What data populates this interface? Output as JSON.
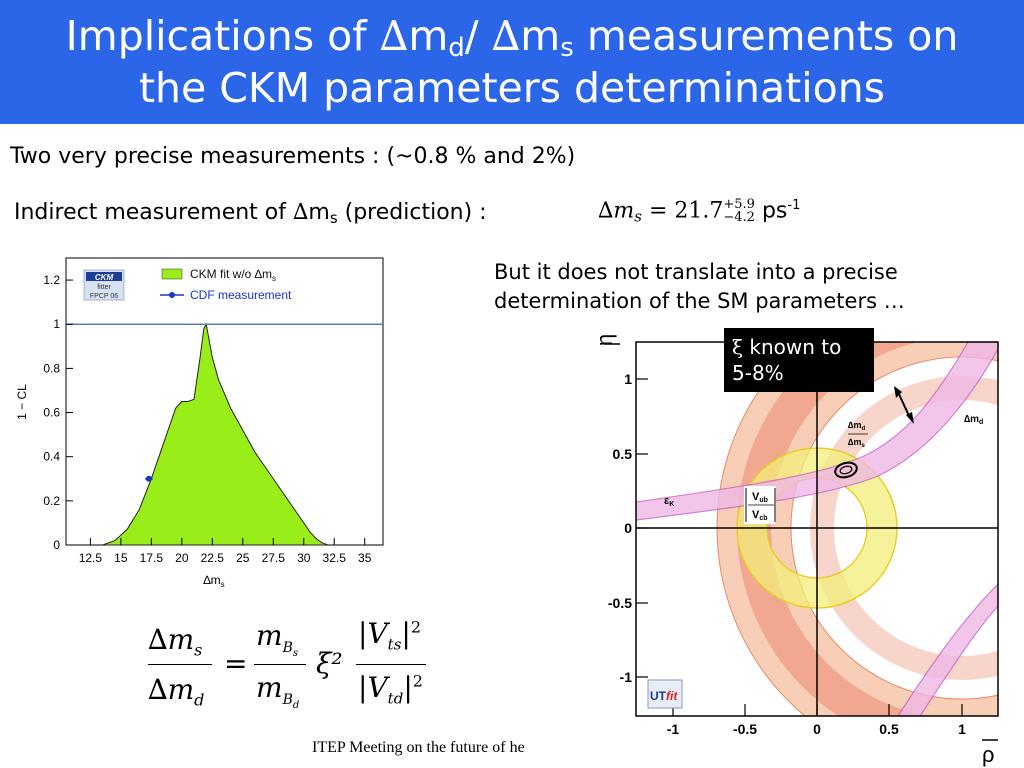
{
  "slide": {
    "title_line1_a": "Implications of ",
    "delta": "∆",
    "m": "m",
    "sub_d": "d",
    "slash": "/ ",
    "sub_s": "s",
    "title_line1_b": " measurements on",
    "title_line2": "the CKM parameters determinations",
    "line_precise": "Two very precise measurements : (~0.8 % and 2%)",
    "indirect_a": "Indirect measurement of ",
    "indirect_b": " (prediction) :",
    "pred_value": "= 21.7",
    "pred_up": "+5.9",
    "pred_down": "−4.2",
    "pred_unit": "ps",
    "pred_unit_exp": "-1",
    "but_line1": "But it does not translate into a precise",
    "but_line2": "determination of the SM parameters …",
    "callout_xi": "ξ",
    "callout_text1": " known to",
    "callout_text2": "5-8%",
    "footer": "ITEP Meeting on the future of he"
  },
  "formula": {
    "eq": "=",
    "xi2": "ξ²",
    "vts": "V",
    "vts_sub": "ts",
    "vtd": "V",
    "vtd_sub": "td",
    "sq": "2",
    "mB": "m",
    "B": "B",
    "s": "s",
    "d": "d"
  },
  "chart_data": {
    "type": "area",
    "xlabel": "∆m",
    "xlabel_sub": "s",
    "ylabel": "1 − CL",
    "xlim": [
      10.5,
      36.5
    ],
    "ylim": [
      0,
      1.3
    ],
    "x_ticks": [
      "12.5",
      "15",
      "17.5",
      "20",
      "22.5",
      "25",
      "27.5",
      "30",
      "32.5",
      "35"
    ],
    "x_tick_values": [
      12.5,
      15,
      17.5,
      20,
      22.5,
      25,
      27.5,
      30,
      32.5,
      35
    ],
    "y_ticks": [
      "0",
      "0.2",
      "0.4",
      "0.6",
      "0.8",
      "1",
      "1.2"
    ],
    "y_tick_values": [
      0,
      0.2,
      0.4,
      0.6,
      0.8,
      1,
      1.2
    ],
    "reference_line": 1,
    "series": [
      {
        "name": "CKM fit w/o ∆m",
        "name_sub": "s",
        "color": "#99ee1a",
        "x": [
          13.5,
          14.5,
          15.5,
          16.5,
          17.5,
          18.5,
          19.5,
          20.0,
          20.5,
          21.0,
          21.5,
          21.8,
          22.0,
          22.5,
          23.0,
          24.0,
          25.0,
          26.0,
          27.0,
          28.0,
          29.0,
          30.0,
          30.5,
          31.0,
          31.5,
          32.0
        ],
        "y": [
          0.0,
          0.02,
          0.07,
          0.16,
          0.3,
          0.46,
          0.62,
          0.65,
          0.65,
          0.66,
          0.85,
          0.98,
          1.0,
          0.85,
          0.75,
          0.62,
          0.52,
          0.42,
          0.34,
          0.26,
          0.18,
          0.1,
          0.06,
          0.03,
          0.01,
          0.0
        ]
      },
      {
        "name": "CDF measurement",
        "color": "#1a33cc",
        "x": [
          17.3
        ],
        "y": [
          0.3
        ],
        "xerr": [
          0.3
        ]
      }
    ],
    "legend_logo": [
      "CKM",
      "fitter",
      "FPCP 06"
    ]
  },
  "ut_plot": {
    "eta_label": "η",
    "rho_label": "ρ",
    "x_ticks": [
      "-1",
      "-0.5",
      "0",
      "0.5",
      "1"
    ],
    "y_ticks": [
      "1",
      "0.5",
      "0",
      "-0.5",
      "-1"
    ],
    "label_epsk": "ε",
    "label_epsk_sub": "K",
    "label_dmd": "∆m",
    "label_dmd_sub": "d",
    "label_ratio_num": "∆m",
    "label_ratio_num_sub": "d",
    "label_ratio_den": "∆m",
    "label_ratio_den_sub": "s",
    "label_vub": "V",
    "label_vub_sub": "ub",
    "label_vcb": "V",
    "label_vcb_sub": "cb",
    "logo_ut": "UT",
    "logo_fit": "fit",
    "colors": {
      "ring_outer": "#f7c9ae",
      "ring_inner": "#f0a08a",
      "vub": "#f3ee7a",
      "epsk": "#f0b8e6"
    }
  }
}
